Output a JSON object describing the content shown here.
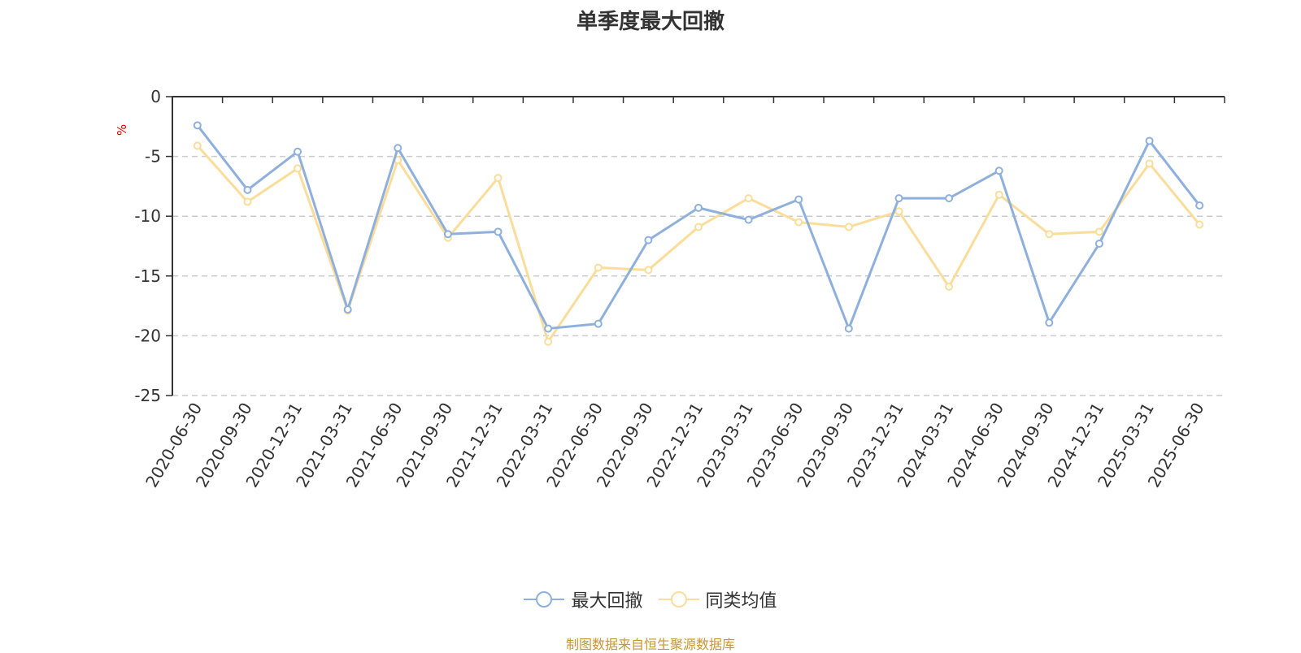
{
  "chart_data": {
    "type": "line",
    "title": "单季度最大回撤",
    "ylabel": "%",
    "ylim": [
      -25,
      0
    ],
    "yticks": [
      0,
      -5,
      -10,
      -15,
      -20,
      -25
    ],
    "grid": true,
    "legend_position": "bottom",
    "categories": [
      "2020-06-30",
      "2020-09-30",
      "2020-12-31",
      "2021-03-31",
      "2021-06-30",
      "2021-09-30",
      "2021-12-31",
      "2022-03-31",
      "2022-06-30",
      "2022-09-30",
      "2022-12-31",
      "2023-03-31",
      "2023-06-30",
      "2023-09-30",
      "2023-12-31",
      "2024-03-31",
      "2024-06-30",
      "2024-09-30",
      "2024-12-31",
      "2025-03-31",
      "2025-06-30"
    ],
    "series": [
      {
        "name": "最大回撤",
        "color": "#8fb0dc",
        "values": [
          -2.4,
          -7.8,
          -4.6,
          -17.8,
          -4.3,
          -11.5,
          -11.3,
          -19.4,
          -19.0,
          -12.0,
          -9.3,
          -10.3,
          -8.6,
          -19.4,
          -8.5,
          -8.5,
          -6.2,
          -18.9,
          -12.3,
          -3.7,
          -9.1
        ]
      },
      {
        "name": "同类均值",
        "color": "#fadd9a",
        "values": [
          -4.1,
          -8.8,
          -6.0,
          -17.9,
          -5.3,
          -11.8,
          -6.8,
          -20.5,
          -14.3,
          -14.5,
          -10.9,
          -8.5,
          -10.5,
          -10.9,
          -9.6,
          -15.9,
          -8.2,
          -11.5,
          -11.3,
          -5.6,
          -10.7
        ]
      }
    ]
  },
  "footer": {
    "source": "制图数据来自恒生聚源数据库",
    "source_color": "#c8962e"
  }
}
